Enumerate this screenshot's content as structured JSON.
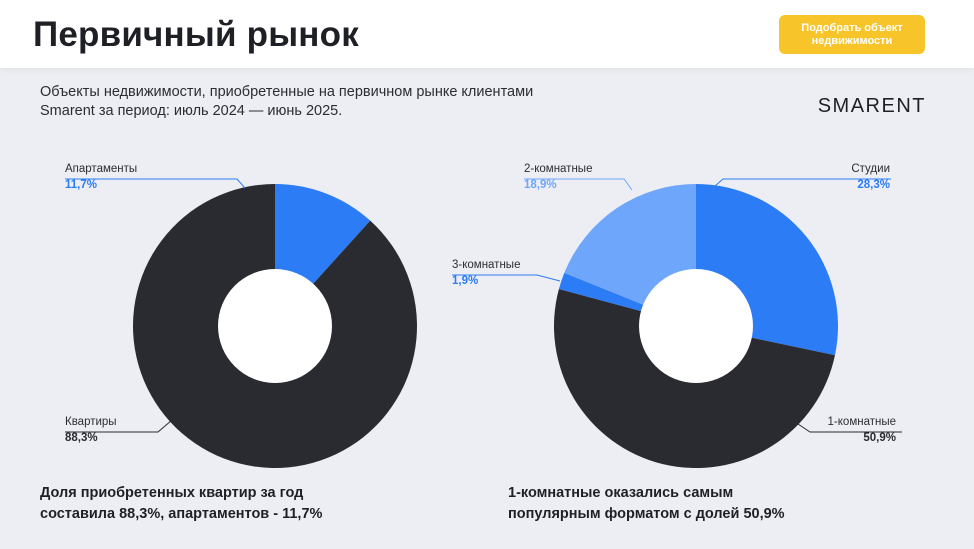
{
  "header": {
    "title": "Первичный рынок",
    "cta_label": "Подобрать объект недвижимости"
  },
  "subtitle": "Объекты недвижимости, приобретенные на первичном рынке клиентами Smarent за период: июль 2024 — июнь 2025.",
  "logo_text": "SMARENT",
  "colors": {
    "dark": "#2a2b30",
    "blue": "#2c7cf5",
    "light_blue": "#6ea6fb",
    "accent": "#f7c52a"
  },
  "chart_data": [
    {
      "type": "pie",
      "donut": true,
      "slices": [
        {
          "label": "Апартаменты",
          "value": 11.7,
          "value_text": "11,7%",
          "color": "#2c7cf5"
        },
        {
          "label": "Квартиры",
          "value": 88.3,
          "value_text": "88,3%",
          "color": "#2a2b30"
        }
      ],
      "conclusion": "Доля приобретенных квартир за год составила 88,3%, апартаментов - 11,7%"
    },
    {
      "type": "pie",
      "donut": true,
      "slices": [
        {
          "label": "Студии",
          "value": 28.3,
          "value_text": "28,3%",
          "color": "#2c7cf5"
        },
        {
          "label": "1-комнатные",
          "value": 50.9,
          "value_text": "50,9%",
          "color": "#2a2b30"
        },
        {
          "label": "3-комнатные",
          "value": 1.9,
          "value_text": "1,9%",
          "color": "#2c7cf5"
        },
        {
          "label": "2-комнатные",
          "value": 18.9,
          "value_text": "18,9%",
          "color": "#6ea6fb"
        }
      ],
      "conclusion": "1-комнатные оказались самым популярным форматом с долей 50,9%"
    }
  ]
}
